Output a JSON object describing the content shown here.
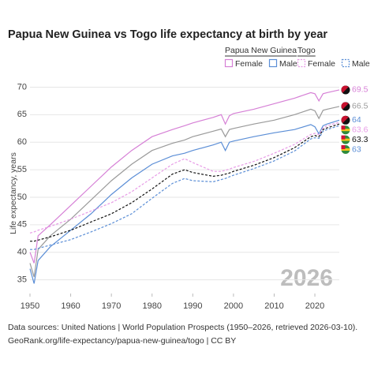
{
  "chart_data": {
    "type": "line",
    "title": "Papua New Guinea vs Togo life expectancy at birth by year",
    "y_label": "Life expectancy, years",
    "annotation": "2026",
    "source_lines": [
      "Data sources: United Nations | World Population Prospects (1950–2026, retrieved 2026-03-10).",
      "GeoRank.org/life-expectancy/papua-new-guinea/togo | CC BY"
    ],
    "groups": [
      "Papua New Guinea",
      "Togo"
    ],
    "grid": true,
    "xlim": [
      1950,
      2026
    ],
    "xticks": [
      1950,
      1960,
      1970,
      1980,
      1990,
      2000,
      2010,
      2020
    ],
    "ylim": [
      32.5,
      71.5
    ],
    "yticks": [
      35,
      40,
      45,
      50,
      55,
      60,
      65,
      70
    ],
    "x": [
      1950,
      1951,
      1952,
      1955,
      1960,
      1965,
      1970,
      1975,
      1980,
      1985,
      1988,
      1990,
      1995,
      1997,
      1998,
      1999,
      2000,
      2005,
      2010,
      2015,
      2019,
      2020,
      2021,
      2022,
      2023,
      2026
    ],
    "series": [
      {
        "group": 0,
        "color": "#d680d6",
        "dash": false,
        "name": "Female",
        "values": [
          40,
          38,
          43,
          45,
          48.5,
          52,
          55.5,
          58.5,
          61,
          62.3,
          63,
          63.5,
          64.5,
          65,
          63.3,
          64.8,
          65.2,
          66,
          67,
          68,
          69,
          68.8,
          67.5,
          68.8,
          69,
          69.5
        ]
      },
      {
        "group": 0,
        "color": "#9a9a9a",
        "dash": false,
        "values": [
          38,
          35.5,
          40.5,
          43,
          46,
          49.5,
          53,
          56,
          58.5,
          59.8,
          60.4,
          61,
          62,
          62.4,
          61,
          62.3,
          62.5,
          63.3,
          64,
          65,
          66,
          65.7,
          64.3,
          65.8,
          66,
          66.5
        ]
      },
      {
        "group": 0,
        "color": "#5b8ed6",
        "dash": false,
        "name": "Male",
        "values": [
          37,
          34.3,
          38.5,
          41,
          44,
          47,
          50.5,
          53.5,
          56,
          57.5,
          58,
          58.5,
          59.5,
          60,
          58.5,
          60,
          60.2,
          61,
          61.7,
          62.3,
          63.2,
          62.8,
          61.5,
          63,
          63.3,
          64
        ]
      },
      {
        "group": 1,
        "color": "#e79ae6",
        "dash": true,
        "name": "Female",
        "values": [
          43.5,
          43.7,
          44,
          44.7,
          46,
          47.5,
          49,
          51,
          53.5,
          56,
          57,
          56.3,
          54.7,
          54.7,
          54.9,
          55.1,
          55.4,
          56.5,
          58,
          59.6,
          61.4,
          61.6,
          61.4,
          62.6,
          63,
          63.6
        ]
      },
      {
        "group": 1,
        "color": "#111111",
        "dash": true,
        "values": [
          42,
          42,
          42.2,
          42.8,
          44,
          45.5,
          47,
          49,
          51.5,
          54.2,
          55,
          54.5,
          53.8,
          54,
          54.2,
          54.4,
          54.7,
          55.8,
          57.2,
          59,
          61,
          61.2,
          61,
          62.3,
          62.6,
          63.3
        ]
      },
      {
        "group": 1,
        "color": "#5b8ed6",
        "dash": true,
        "name": "Male",
        "values": [
          40.5,
          40.5,
          40.7,
          41.3,
          42.3,
          43.7,
          45.2,
          47,
          49.8,
          52.5,
          53.4,
          53,
          52.8,
          53.2,
          53.4,
          53.7,
          54,
          55.2,
          56.6,
          58.4,
          60.6,
          60.8,
          60.7,
          62,
          62.3,
          63
        ]
      }
    ]
  }
}
